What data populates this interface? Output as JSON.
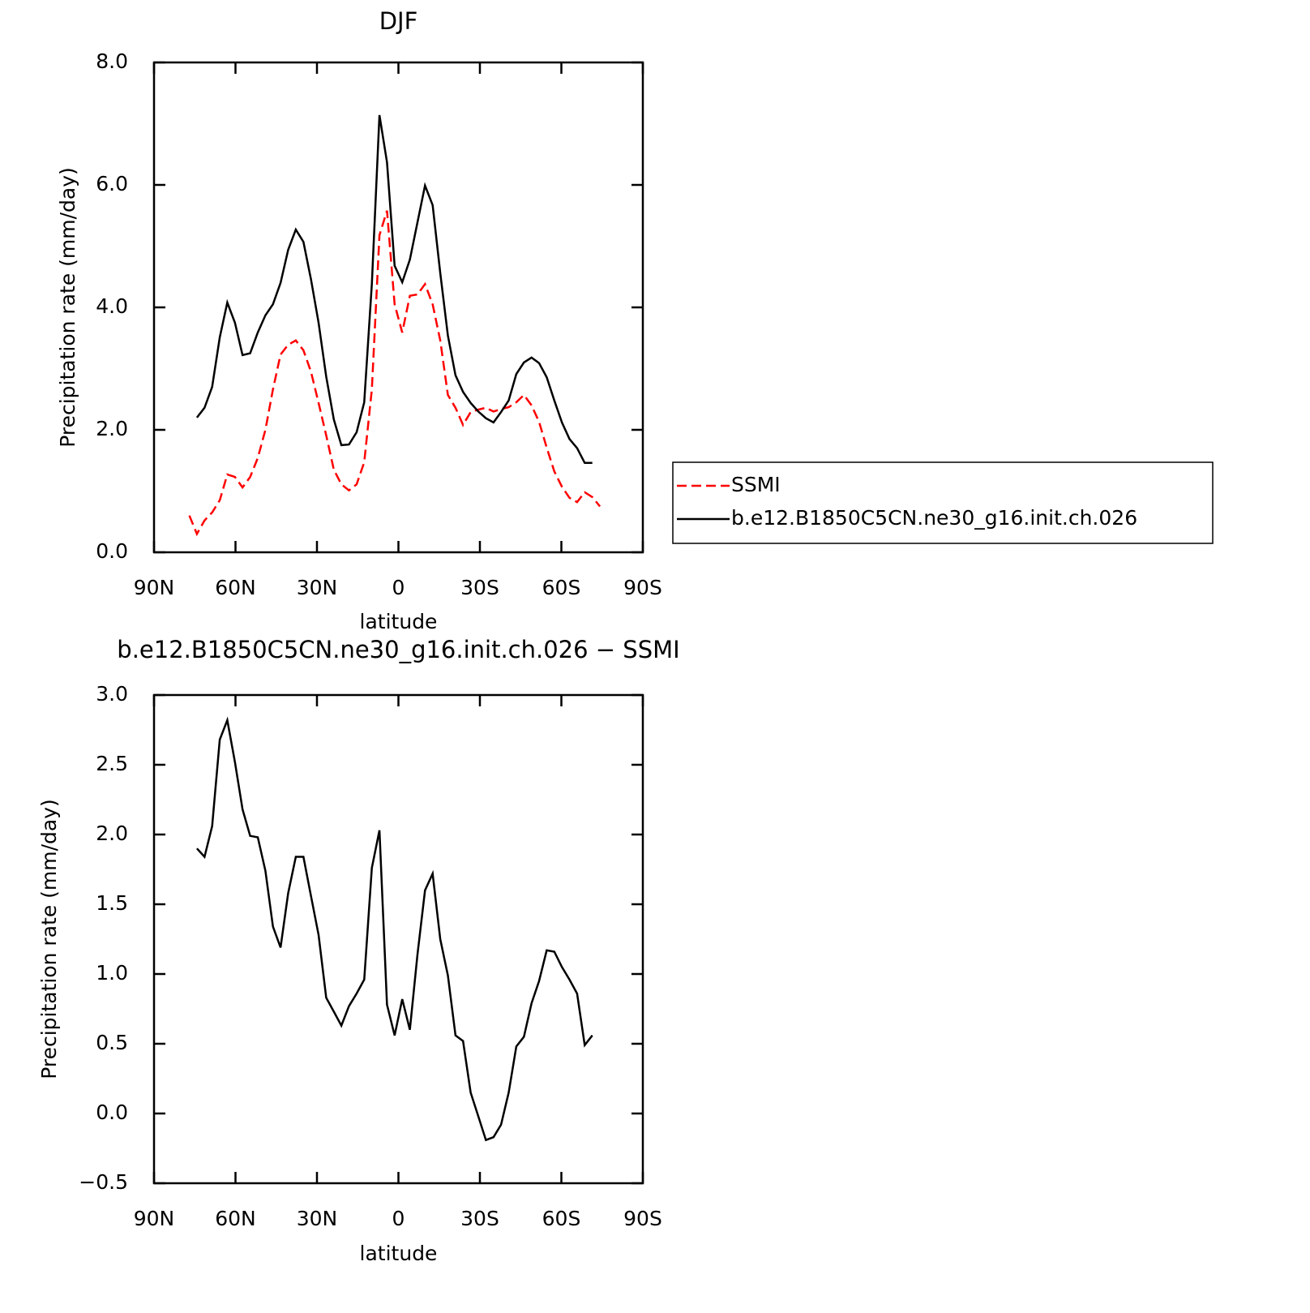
{
  "chart_data": [
    {
      "type": "line",
      "title": "DJF",
      "xlabel": "latitude",
      "ylabel": "Precipitation rate (mm/day)",
      "x": [
        77.0,
        74.2,
        71.4,
        68.6,
        65.8,
        63.0,
        60.2,
        57.4,
        54.6,
        51.8,
        49.0,
        46.2,
        43.4,
        40.6,
        37.8,
        35.0,
        32.2,
        29.4,
        26.6,
        23.8,
        21.0,
        18.2,
        15.4,
        12.6,
        9.8,
        7.0,
        4.2,
        1.4,
        -1.4,
        -4.2,
        -7.0,
        -9.8,
        -12.6,
        -15.4,
        -18.2,
        -21.0,
        -23.8,
        -26.6,
        -29.4,
        -32.2,
        -35.0,
        -37.8,
        -40.6,
        -43.4,
        -46.2,
        -49.0,
        -51.8,
        -54.6,
        -57.4,
        -60.2,
        -63.0,
        -65.8,
        -68.6,
        -71.4,
        -74.2
      ],
      "series": [
        {
          "name": "SSMI",
          "color": "#ff0000",
          "style": "dashed",
          "values": [
            0.6,
            0.3,
            0.52,
            0.65,
            0.85,
            1.27,
            1.23,
            1.06,
            1.23,
            1.54,
            2.0,
            2.66,
            3.23,
            3.39,
            3.46,
            3.3,
            2.95,
            2.44,
            1.91,
            1.35,
            1.11,
            1.01,
            1.11,
            1.47,
            2.66,
            5.18,
            5.58,
            4.05,
            3.59,
            4.19,
            4.21,
            4.38,
            4.05,
            3.46,
            2.57,
            2.36,
            2.08,
            2.29,
            2.33,
            2.36,
            2.3,
            2.34,
            2.37,
            2.45,
            2.57,
            2.4,
            2.13,
            1.71,
            1.32,
            1.07,
            0.89,
            0.82,
            0.98,
            0.9,
            0.75
          ]
        },
        {
          "name": "b.e12.B1850C5CN.ne30_g16.init.ch.026",
          "color": "#000000",
          "style": "solid",
          "values": [
            null,
            2.2,
            2.36,
            2.7,
            3.51,
            4.08,
            3.75,
            3.22,
            3.25,
            3.59,
            3.87,
            4.05,
            4.4,
            4.94,
            5.27,
            5.07,
            4.46,
            3.75,
            2.87,
            2.17,
            1.75,
            1.76,
            1.96,
            2.45,
            4.38,
            7.14,
            6.37,
            4.68,
            4.41,
            4.78,
            5.39,
            5.99,
            5.67,
            4.56,
            3.54,
            2.89,
            2.62,
            2.44,
            2.3,
            2.19,
            2.12,
            2.29,
            2.48,
            2.91,
            3.1,
            3.18,
            3.09,
            2.86,
            2.48,
            2.12,
            1.85,
            1.7,
            1.46,
            1.46,
            null
          ]
        }
      ],
      "xlim": [
        90,
        -90
      ],
      "xticks": [
        {
          "value": 90,
          "label": "90N"
        },
        {
          "value": 60,
          "label": "60N"
        },
        {
          "value": 30,
          "label": "30N"
        },
        0,
        {
          "value": -30,
          "label": "30S"
        },
        {
          "value": -60,
          "label": "60S"
        },
        {
          "value": -90,
          "label": "90S"
        }
      ],
      "ylim": [
        0,
        8
      ],
      "yticks": [
        {
          "value": 0,
          "label": "0.0"
        },
        {
          "value": 2,
          "label": "2.0"
        },
        {
          "value": 4,
          "label": "4.0"
        },
        {
          "value": 6,
          "label": "6.0"
        },
        {
          "value": 8,
          "label": "8.0"
        }
      ],
      "legend": "right"
    },
    {
      "type": "line",
      "title": "b.e12.B1850C5CN.ne30_g16.init.ch.026 − SSMI",
      "xlabel": "latitude",
      "ylabel": "Precipitation rate (mm/day)",
      "x": [
        74.2,
        71.4,
        68.6,
        65.8,
        63.0,
        60.2,
        57.4,
        54.6,
        51.8,
        49.0,
        46.2,
        43.4,
        40.6,
        37.8,
        35.0,
        32.2,
        29.4,
        26.6,
        23.8,
        21.0,
        18.2,
        15.4,
        12.6,
        9.8,
        7.0,
        4.2,
        1.4,
        -1.4,
        -4.2,
        -7.0,
        -9.8,
        -12.6,
        -15.4,
        -18.2,
        -21.0,
        -23.8,
        -26.6,
        -29.4,
        -32.2,
        -35.0,
        -37.8,
        -40.6,
        -43.4,
        -46.2,
        -49.0,
        -51.8,
        -54.6,
        -57.4,
        -60.2,
        -63.0,
        -65.8,
        -68.6,
        -71.4
      ],
      "series": [
        {
          "color": "#000000",
          "style": "solid",
          "values": [
            1.9,
            1.84,
            2.06,
            2.68,
            2.82,
            2.52,
            2.18,
            1.99,
            1.98,
            1.74,
            1.34,
            1.19,
            1.58,
            1.84,
            1.84,
            1.56,
            1.28,
            0.83,
            0.73,
            0.63,
            0.77,
            0.86,
            0.96,
            1.76,
            2.03,
            0.78,
            0.56,
            0.82,
            0.6,
            1.14,
            1.6,
            1.72,
            1.25,
            0.99,
            0.56,
            0.52,
            0.15,
            -0.02,
            -0.19,
            -0.17,
            -0.08,
            0.15,
            0.48,
            0.55,
            0.79,
            0.95,
            1.17,
            1.16,
            1.05,
            0.96,
            0.86,
            0.49,
            0.56
          ]
        }
      ],
      "xlim": [
        90,
        -90
      ],
      "xticks": [
        {
          "value": 90,
          "label": "90N"
        },
        {
          "value": 60,
          "label": "60N"
        },
        {
          "value": 30,
          "label": "30N"
        },
        0,
        {
          "value": -30,
          "label": "30S"
        },
        {
          "value": -60,
          "label": "60S"
        },
        {
          "value": -90,
          "label": "90S"
        }
      ],
      "ylim": [
        -0.5,
        3
      ],
      "yticks": [
        {
          "value": -0.5,
          "label": "−0.5"
        },
        {
          "value": 0,
          "label": "0.0"
        },
        0.5,
        {
          "value": 1,
          "label": "1.0"
        },
        1.5,
        {
          "value": 2,
          "label": "2.0"
        },
        2.5,
        {
          "value": 3,
          "label": "3.0"
        }
      ]
    }
  ]
}
